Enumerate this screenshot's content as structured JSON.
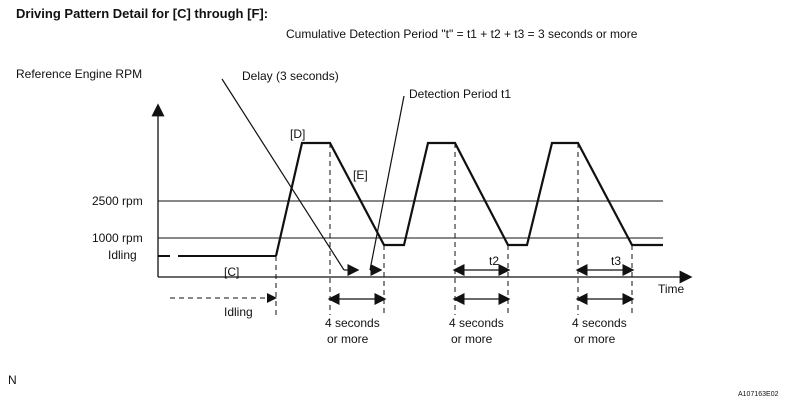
{
  "header": {
    "title": "Driving Pattern Detail for [C] through [F]:",
    "subtitle": "Cumulative Detection Period \"t\" = t1 + t2 + t3 = 3 seconds or more"
  },
  "axes": {
    "y_label": "Reference Engine RPM",
    "x_label": "Time"
  },
  "levels": [
    {
      "label": "2500 rpm"
    },
    {
      "label": "1000 rpm"
    },
    {
      "label": "Idling"
    }
  ],
  "annotations": {
    "delay": "Delay (3 seconds)",
    "detection_t1": "Detection Period t1",
    "phase_c": "[C]",
    "phase_d": "[D]",
    "phase_e": "[E]",
    "t2": "t2",
    "t3": "t3",
    "idling_bottom": "Idling",
    "cycle_1_line1": "4 seconds",
    "cycle_1_line2": "or more",
    "cycle_2_line1": "4 seconds",
    "cycle_2_line2": "or more",
    "cycle_3_line1": "4 seconds",
    "cycle_3_line2": "or more"
  },
  "footer": {
    "left_mark": "N",
    "figure_id": "A107163E02"
  }
}
